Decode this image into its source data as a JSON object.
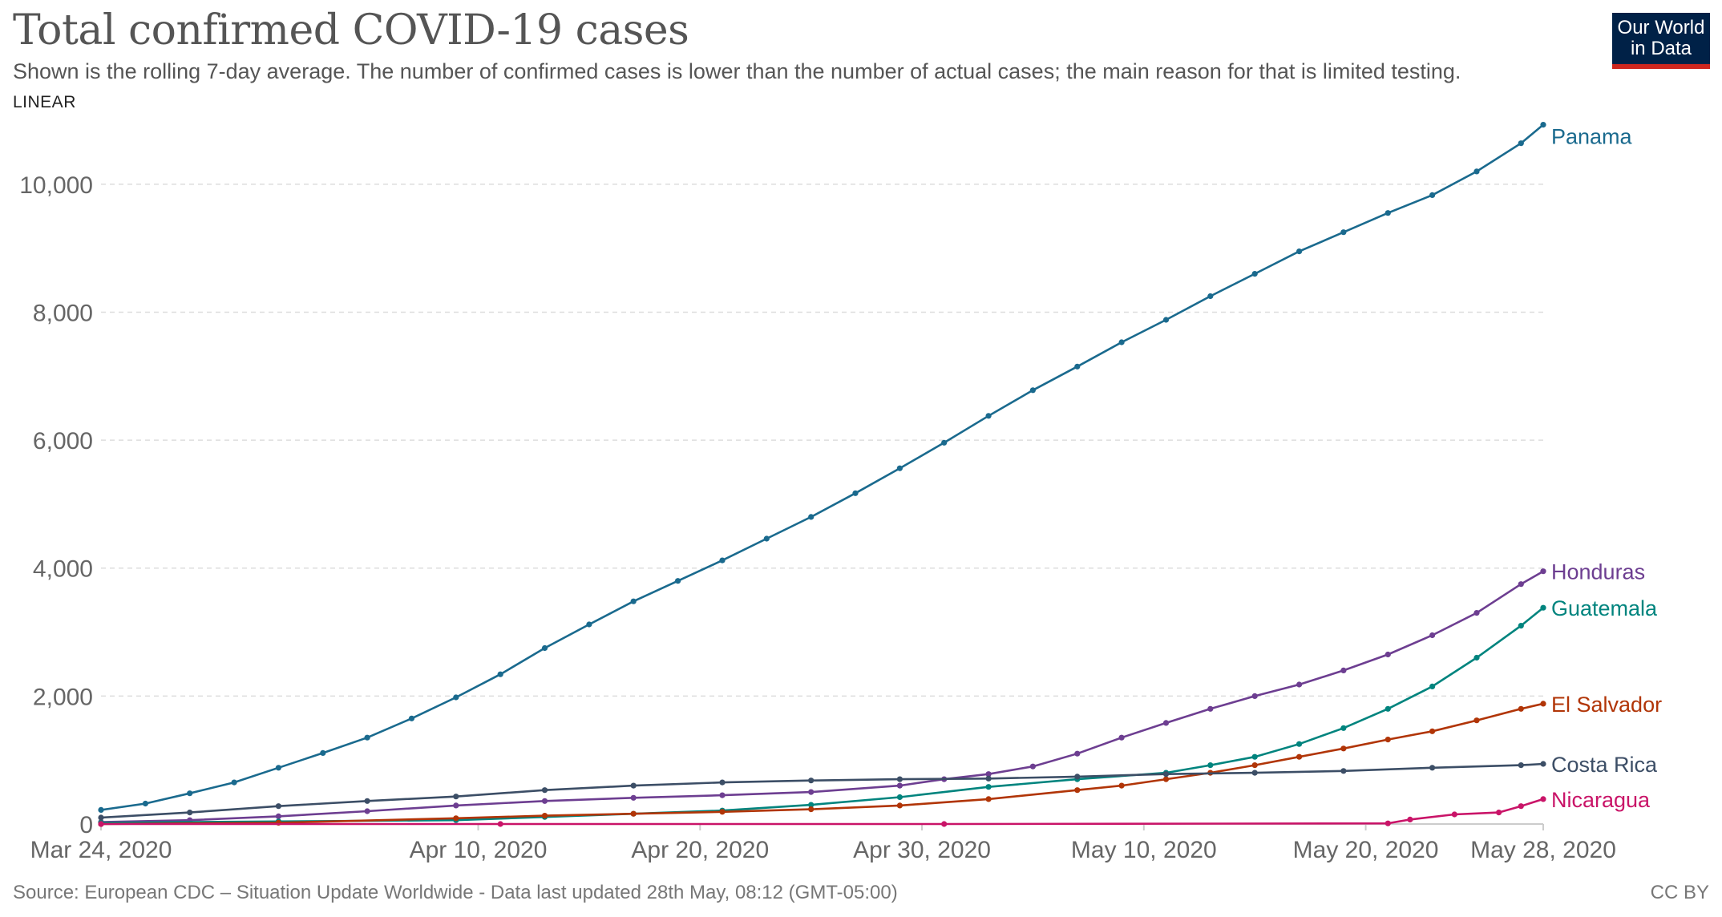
{
  "header": {
    "title": "Total confirmed COVID-19 cases",
    "subtitle": "Shown is the rolling 7-day average. The number of confirmed cases is lower than the number of actual cases; the main reason for that is limited testing.",
    "scale_label": "LINEAR"
  },
  "logo": {
    "line1": "Our World",
    "line2": "in Data",
    "bg_color": "#002147",
    "accent_color": "#ce261e"
  },
  "footer": {
    "source": "Source: European CDC – Situation Update Worldwide - Data last updated 28th May, 08:12 (GMT-05:00)",
    "license": "CC BY"
  },
  "chart_data": {
    "type": "line",
    "title": "Total confirmed COVID-19 cases",
    "subtitle": "Shown is the rolling 7-day average. The number of confirmed cases is lower than the number of actual cases; the main reason for that is limited testing.",
    "x_start": "2020-03-24",
    "x_end": "2020-05-28",
    "x_ticks": [
      {
        "date": "2020-03-24",
        "label": "Mar 24, 2020"
      },
      {
        "date": "2020-04-10",
        "label": "Apr 10, 2020"
      },
      {
        "date": "2020-04-20",
        "label": "Apr 20, 2020"
      },
      {
        "date": "2020-04-30",
        "label": "Apr 30, 2020"
      },
      {
        "date": "2020-05-10",
        "label": "May 10, 2020"
      },
      {
        "date": "2020-05-20",
        "label": "May 20, 2020"
      },
      {
        "date": "2020-05-28",
        "label": "May 28, 2020"
      }
    ],
    "ylim": [
      0,
      11000
    ],
    "y_ticks": [
      {
        "value": 0,
        "label": "0"
      },
      {
        "value": 2000,
        "label": "2,000"
      },
      {
        "value": 4000,
        "label": "4,000"
      },
      {
        "value": 6000,
        "label": "6,000"
      },
      {
        "value": 8000,
        "label": "8,000"
      },
      {
        "value": 10000,
        "label": "10,000"
      }
    ],
    "grid": true,
    "legend": "end-of-line labels",
    "series": [
      {
        "name": "Panama",
        "color": "#1a6a8e",
        "points": [
          [
            "2020-03-24",
            220
          ],
          [
            "2020-03-26",
            320
          ],
          [
            "2020-03-28",
            480
          ],
          [
            "2020-03-30",
            650
          ],
          [
            "2020-04-01",
            880
          ],
          [
            "2020-04-03",
            1110
          ],
          [
            "2020-04-05",
            1350
          ],
          [
            "2020-04-07",
            1650
          ],
          [
            "2020-04-09",
            1980
          ],
          [
            "2020-04-11",
            2340
          ],
          [
            "2020-04-13",
            2750
          ],
          [
            "2020-04-15",
            3120
          ],
          [
            "2020-04-17",
            3480
          ],
          [
            "2020-04-19",
            3800
          ],
          [
            "2020-04-21",
            4120
          ],
          [
            "2020-04-23",
            4460
          ],
          [
            "2020-04-25",
            4800
          ],
          [
            "2020-04-27",
            5170
          ],
          [
            "2020-04-29",
            5560
          ],
          [
            "2020-05-01",
            5960
          ],
          [
            "2020-05-03",
            6380
          ],
          [
            "2020-05-05",
            6780
          ],
          [
            "2020-05-07",
            7150
          ],
          [
            "2020-05-09",
            7530
          ],
          [
            "2020-05-11",
            7880
          ],
          [
            "2020-05-13",
            8250
          ],
          [
            "2020-05-15",
            8600
          ],
          [
            "2020-05-17",
            8950
          ],
          [
            "2020-05-19",
            9250
          ],
          [
            "2020-05-21",
            9550
          ],
          [
            "2020-05-23",
            9830
          ],
          [
            "2020-05-25",
            10200
          ],
          [
            "2020-05-27",
            10640
          ],
          [
            "2020-05-28",
            10930
          ]
        ]
      },
      {
        "name": "Honduras",
        "color": "#6d3e91",
        "points": [
          [
            "2020-03-24",
            30
          ],
          [
            "2020-03-28",
            60
          ],
          [
            "2020-04-01",
            120
          ],
          [
            "2020-04-05",
            200
          ],
          [
            "2020-04-09",
            290
          ],
          [
            "2020-04-13",
            360
          ],
          [
            "2020-04-17",
            410
          ],
          [
            "2020-04-21",
            450
          ],
          [
            "2020-04-25",
            500
          ],
          [
            "2020-04-29",
            600
          ],
          [
            "2020-05-01",
            700
          ],
          [
            "2020-05-03",
            780
          ],
          [
            "2020-05-05",
            900
          ],
          [
            "2020-05-07",
            1100
          ],
          [
            "2020-05-09",
            1350
          ],
          [
            "2020-05-11",
            1580
          ],
          [
            "2020-05-13",
            1800
          ],
          [
            "2020-05-15",
            2000
          ],
          [
            "2020-05-17",
            2180
          ],
          [
            "2020-05-19",
            2400
          ],
          [
            "2020-05-21",
            2650
          ],
          [
            "2020-05-23",
            2950
          ],
          [
            "2020-05-25",
            3300
          ],
          [
            "2020-05-27",
            3750
          ],
          [
            "2020-05-28",
            3950
          ]
        ]
      },
      {
        "name": "Guatemala",
        "color": "#00847e",
        "points": [
          [
            "2020-03-24",
            20
          ],
          [
            "2020-04-01",
            40
          ],
          [
            "2020-04-09",
            60
          ],
          [
            "2020-04-13",
            110
          ],
          [
            "2020-04-17",
            160
          ],
          [
            "2020-04-21",
            210
          ],
          [
            "2020-04-25",
            300
          ],
          [
            "2020-04-29",
            420
          ],
          [
            "2020-05-03",
            580
          ],
          [
            "2020-05-07",
            700
          ],
          [
            "2020-05-11",
            800
          ],
          [
            "2020-05-13",
            920
          ],
          [
            "2020-05-15",
            1050
          ],
          [
            "2020-05-17",
            1250
          ],
          [
            "2020-05-19",
            1500
          ],
          [
            "2020-05-21",
            1800
          ],
          [
            "2020-05-23",
            2150
          ],
          [
            "2020-05-25",
            2600
          ],
          [
            "2020-05-27",
            3100
          ],
          [
            "2020-05-28",
            3380
          ]
        ]
      },
      {
        "name": "El Salvador",
        "color": "#b13507",
        "points": [
          [
            "2020-03-24",
            0
          ],
          [
            "2020-04-01",
            20
          ],
          [
            "2020-04-09",
            90
          ],
          [
            "2020-04-13",
            130
          ],
          [
            "2020-04-17",
            160
          ],
          [
            "2020-04-21",
            190
          ],
          [
            "2020-04-25",
            230
          ],
          [
            "2020-04-29",
            290
          ],
          [
            "2020-05-03",
            390
          ],
          [
            "2020-05-07",
            530
          ],
          [
            "2020-05-09",
            600
          ],
          [
            "2020-05-11",
            700
          ],
          [
            "2020-05-13",
            800
          ],
          [
            "2020-05-15",
            920
          ],
          [
            "2020-05-17",
            1050
          ],
          [
            "2020-05-19",
            1180
          ],
          [
            "2020-05-21",
            1320
          ],
          [
            "2020-05-23",
            1450
          ],
          [
            "2020-05-25",
            1620
          ],
          [
            "2020-05-27",
            1800
          ],
          [
            "2020-05-28",
            1880
          ]
        ]
      },
      {
        "name": "Costa Rica",
        "color": "#3c4e66",
        "points": [
          [
            "2020-03-24",
            100
          ],
          [
            "2020-03-28",
            180
          ],
          [
            "2020-04-01",
            280
          ],
          [
            "2020-04-05",
            360
          ],
          [
            "2020-04-09",
            430
          ],
          [
            "2020-04-13",
            530
          ],
          [
            "2020-04-17",
            600
          ],
          [
            "2020-04-21",
            650
          ],
          [
            "2020-04-25",
            680
          ],
          [
            "2020-04-29",
            700
          ],
          [
            "2020-05-03",
            710
          ],
          [
            "2020-05-07",
            740
          ],
          [
            "2020-05-11",
            780
          ],
          [
            "2020-05-15",
            800
          ],
          [
            "2020-05-19",
            830
          ],
          [
            "2020-05-23",
            880
          ],
          [
            "2020-05-27",
            920
          ],
          [
            "2020-05-28",
            940
          ]
        ]
      },
      {
        "name": "Nicaragua",
        "color": "#c91468",
        "points": [
          [
            "2020-03-24",
            0
          ],
          [
            "2020-04-11",
            0
          ],
          [
            "2020-05-01",
            0
          ],
          [
            "2020-05-21",
            10
          ],
          [
            "2020-05-22",
            70
          ],
          [
            "2020-05-24",
            150
          ],
          [
            "2020-05-26",
            180
          ],
          [
            "2020-05-27",
            280
          ],
          [
            "2020-05-28",
            390
          ]
        ]
      }
    ]
  }
}
